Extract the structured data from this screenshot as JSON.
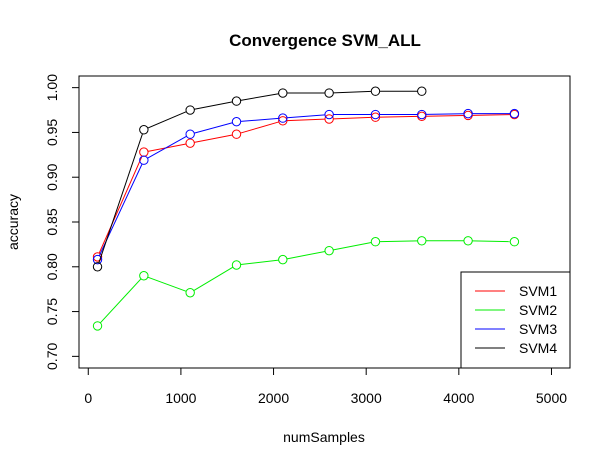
{
  "chart_data": {
    "type": "line",
    "title": "Convergence SVM_ALL",
    "xlabel": "numSamples",
    "ylabel": "accuracy",
    "xlim": [
      -100,
      5200
    ],
    "ylim": [
      0.687,
      1.013
    ],
    "xticks": [
      0,
      1000,
      2000,
      3000,
      4000,
      5000
    ],
    "xtick_labels": [
      "0",
      "1000",
      "2000",
      "3000",
      "4000",
      "5000"
    ],
    "yticks": [
      0.7,
      0.75,
      0.8,
      0.85,
      0.9,
      0.95,
      1.0
    ],
    "ytick_labels": [
      "0.70",
      "0.75",
      "0.80",
      "0.85",
      "0.90",
      "0.95",
      "1.00"
    ],
    "grid": false,
    "legend_position": "bottom-right",
    "series": [
      {
        "name": "SVM1",
        "color": "#ff0000",
        "x": [
          100,
          600,
          1100,
          1600,
          2100,
          2600,
          3100,
          3600,
          4100,
          4600
        ],
        "y": [
          0.811,
          0.928,
          0.938,
          0.948,
          0.963,
          0.965,
          0.967,
          0.968,
          0.969,
          0.97
        ]
      },
      {
        "name": "SVM2",
        "color": "#00ee00",
        "x": [
          100,
          600,
          1100,
          1600,
          2100,
          2600,
          3100,
          3600,
          4100,
          4600
        ],
        "y": [
          0.734,
          0.79,
          0.771,
          0.802,
          0.808,
          0.818,
          0.828,
          0.829,
          0.829,
          0.828
        ]
      },
      {
        "name": "SVM3",
        "color": "#0000ff",
        "x": [
          100,
          600,
          1100,
          1600,
          2100,
          2600,
          3100,
          3600,
          4100,
          4600
        ],
        "y": [
          0.808,
          0.919,
          0.948,
          0.962,
          0.966,
          0.97,
          0.97,
          0.97,
          0.971,
          0.971
        ]
      },
      {
        "name": "SVM4",
        "color": "#000000",
        "x": [
          100,
          600,
          1100,
          1600,
          2100,
          2600,
          3100,
          3600
        ],
        "y": [
          0.8,
          0.953,
          0.975,
          0.985,
          0.994,
          0.994,
          0.996,
          0.996
        ]
      }
    ]
  }
}
